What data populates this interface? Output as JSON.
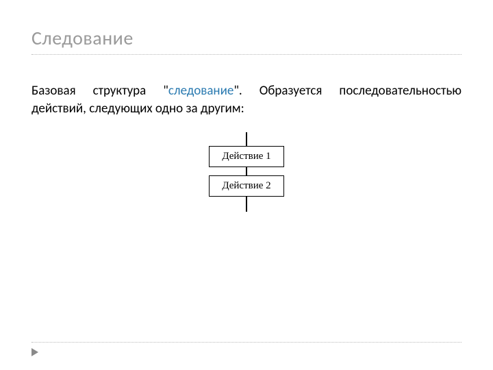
{
  "title": "Следование",
  "paragraph": {
    "prefix": "Базовая структура \"",
    "highlight": "следование",
    "suffix": "\". Образуется последовательностью действий, следующих одно за другим:"
  },
  "diagram": {
    "type": "flowchart",
    "nodes": [
      {
        "label": "Действие 1"
      },
      {
        "label": "Действие 2"
      }
    ],
    "box_border_color": "#000000",
    "box_bg_color": "#ffffff",
    "box_font_family": "Times New Roman",
    "box_font_size": 15,
    "connector_color": "#000000"
  },
  "colors": {
    "title": "#9a9a9a",
    "body": "#000000",
    "highlight": "#2a7ab0",
    "dotted_line": "#b8b8b8",
    "marker": "#8a8a8a",
    "background": "#ffffff"
  },
  "typography": {
    "title_size": 28,
    "body_size": 19
  }
}
